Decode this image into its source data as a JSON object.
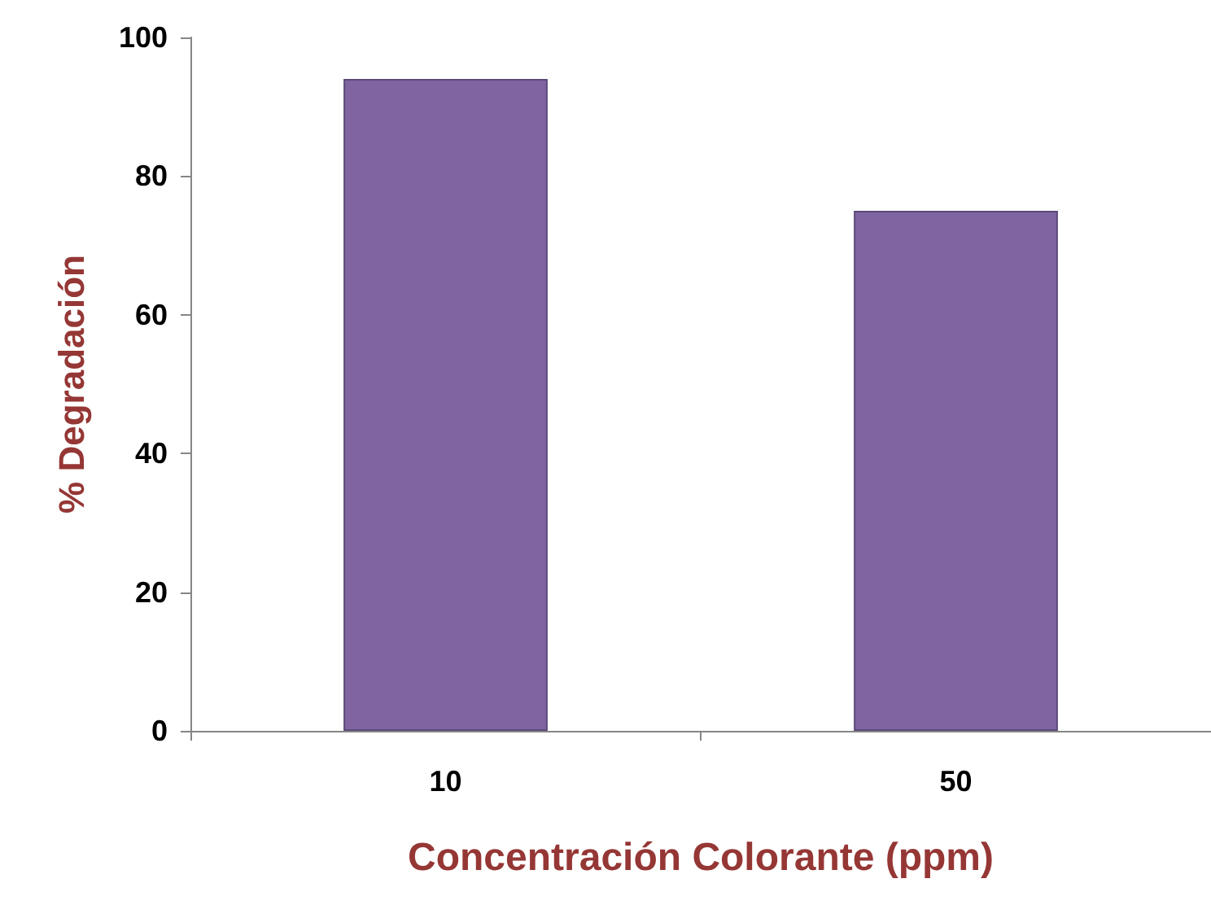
{
  "chart_data": {
    "type": "bar",
    "xlabel": "Concentración Colorante (ppm)",
    "ylabel": "% Degradación",
    "categories": [
      "10",
      "50"
    ],
    "values": [
      94,
      75
    ],
    "color": "#8064a2",
    "ylim": [
      0,
      100
    ],
    "yticks": [
      0,
      20,
      40,
      60,
      80,
      100
    ],
    "grid": false
  }
}
